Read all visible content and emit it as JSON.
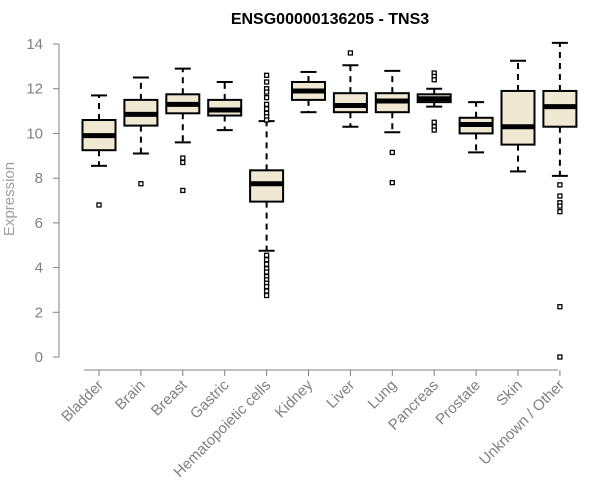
{
  "chart_data": {
    "type": "boxplot",
    "title": "ENSG00000136205 - TNS3",
    "xlabel": "",
    "ylabel": "Expression",
    "ylim": [
      0,
      14
    ],
    "yticks": [
      0,
      2,
      4,
      6,
      8,
      10,
      12,
      14
    ],
    "ytick_labels": [
      "0",
      "2",
      "4",
      "6",
      "8",
      "10",
      "12",
      "14"
    ],
    "grid": false,
    "colors": {
      "box_fill": "#efe9d3",
      "box_stroke": "#000000",
      "axis": "#808080",
      "title": "#000000",
      "ylabel": "#a0a0a0"
    },
    "categories": [
      "Bladder",
      "Brain",
      "Breast",
      "Gastric",
      "Hematopoietic cells",
      "Kidney",
      "Liver",
      "Lung",
      "Pancreas",
      "Prostate",
      "Skin",
      "Unknown / Other"
    ],
    "boxes": [
      {
        "name": "Bladder",
        "whislo": 8.55,
        "q1": 9.25,
        "med": 9.9,
        "q3": 10.6,
        "whishi": 11.7,
        "fliers": [
          6.8
        ]
      },
      {
        "name": "Brain",
        "whislo": 9.1,
        "q1": 10.35,
        "med": 10.85,
        "q3": 11.5,
        "whishi": 12.5,
        "fliers": [
          7.75
        ]
      },
      {
        "name": "Breast",
        "whislo": 9.6,
        "q1": 10.9,
        "med": 11.3,
        "q3": 11.75,
        "whishi": 12.9,
        "fliers": [
          8.9,
          8.7,
          7.45
        ]
      },
      {
        "name": "Gastric",
        "whislo": 10.15,
        "q1": 10.8,
        "med": 11.05,
        "q3": 11.5,
        "whishi": 12.3,
        "fliers": []
      },
      {
        "name": "Hematopoietic cells",
        "whislo": 4.75,
        "q1": 6.95,
        "med": 7.75,
        "q3": 8.35,
        "whishi": 10.55,
        "fliers": [
          12.6,
          12.3,
          12.0,
          11.85,
          11.6,
          11.3,
          11.1,
          10.9,
          10.75,
          10.6,
          4.55,
          4.35,
          4.15,
          3.95,
          3.8,
          3.6,
          3.45,
          3.3,
          3.15,
          2.95,
          2.75
        ]
      },
      {
        "name": "Kidney",
        "whislo": 10.95,
        "q1": 11.5,
        "med": 11.9,
        "q3": 12.3,
        "whishi": 12.75,
        "fliers": []
      },
      {
        "name": "Liver",
        "whislo": 10.3,
        "q1": 10.95,
        "med": 11.25,
        "q3": 11.8,
        "whishi": 13.05,
        "fliers": [
          13.6
        ]
      },
      {
        "name": "Lung",
        "whislo": 10.05,
        "q1": 10.95,
        "med": 11.45,
        "q3": 11.8,
        "whishi": 12.8,
        "fliers": [
          9.15,
          7.8
        ]
      },
      {
        "name": "Pancreas",
        "whislo": 11.2,
        "q1": 11.4,
        "med": 11.55,
        "q3": 11.75,
        "whishi": 12.0,
        "fliers": [
          12.7,
          12.55,
          12.4,
          10.5,
          10.3,
          10.15
        ]
      },
      {
        "name": "Prostate",
        "whislo": 9.15,
        "q1": 10.0,
        "med": 10.4,
        "q3": 10.7,
        "whishi": 11.4,
        "fliers": []
      },
      {
        "name": "Skin",
        "whislo": 8.3,
        "q1": 9.5,
        "med": 10.3,
        "q3": 11.9,
        "whishi": 13.25,
        "fliers": []
      },
      {
        "name": "Unknown / Other",
        "whislo": 8.1,
        "q1": 10.3,
        "med": 11.2,
        "q3": 11.9,
        "whishi": 14.05,
        "fliers": [
          7.7,
          7.2,
          6.9,
          6.75,
          6.5,
          2.25,
          0.0
        ]
      }
    ]
  }
}
